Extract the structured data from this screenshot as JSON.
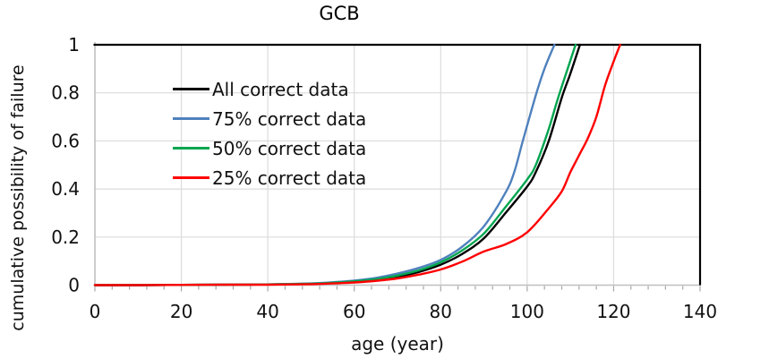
{
  "chart_data": {
    "type": "line",
    "title": "GCB",
    "xlabel": "age (year)",
    "ylabel": "cumulative possibility of failure",
    "xlim": [
      0,
      140
    ],
    "ylim": [
      0,
      1
    ],
    "x_ticks": [
      0,
      20,
      40,
      60,
      80,
      100,
      120,
      140
    ],
    "y_ticks": [
      0,
      0.2,
      0.4,
      0.6,
      0.8,
      1
    ],
    "x_minor_tick_unit": 4,
    "grid": true,
    "legend_position": "inside-top-left",
    "plot_border_color": "#000000",
    "axis_color": "#BFBFBF",
    "gridline_color": "#DCDCDC",
    "series": [
      {
        "name": "All correct data",
        "color": "#000000",
        "points": [
          [
            0,
            0
          ],
          [
            10,
            0
          ],
          [
            20,
            0.001
          ],
          [
            30,
            0.002
          ],
          [
            40,
            0.003
          ],
          [
            50,
            0.006
          ],
          [
            55,
            0.009
          ],
          [
            60,
            0.014
          ],
          [
            65,
            0.022
          ],
          [
            70,
            0.035
          ],
          [
            75,
            0.055
          ],
          [
            80,
            0.085
          ],
          [
            85,
            0.13
          ],
          [
            90,
            0.195
          ],
          [
            95,
            0.3
          ],
          [
            100,
            0.41
          ],
          [
            102,
            0.47
          ],
          [
            105,
            0.6
          ],
          [
            108,
            0.78
          ],
          [
            110,
            0.88
          ],
          [
            112.2,
            1.0
          ]
        ]
      },
      {
        "name": "75% correct data",
        "color": "#4F81BD",
        "points": [
          [
            0,
            0
          ],
          [
            10,
            0
          ],
          [
            20,
            0.001
          ],
          [
            30,
            0.002
          ],
          [
            40,
            0.003
          ],
          [
            50,
            0.007
          ],
          [
            55,
            0.012
          ],
          [
            60,
            0.019
          ],
          [
            65,
            0.03
          ],
          [
            70,
            0.048
          ],
          [
            75,
            0.072
          ],
          [
            80,
            0.105
          ],
          [
            85,
            0.16
          ],
          [
            90,
            0.245
          ],
          [
            95,
            0.385
          ],
          [
            97,
            0.47
          ],
          [
            99,
            0.6
          ],
          [
            102,
            0.79
          ],
          [
            104,
            0.9
          ],
          [
            106.3,
            1.0
          ]
        ]
      },
      {
        "name": "50% correct data",
        "color": "#00A54F",
        "points": [
          [
            0,
            0
          ],
          [
            10,
            0
          ],
          [
            20,
            0.001
          ],
          [
            30,
            0.002
          ],
          [
            40,
            0.003
          ],
          [
            50,
            0.006
          ],
          [
            55,
            0.01
          ],
          [
            60,
            0.016
          ],
          [
            65,
            0.025
          ],
          [
            70,
            0.04
          ],
          [
            75,
            0.062
          ],
          [
            80,
            0.095
          ],
          [
            85,
            0.145
          ],
          [
            90,
            0.215
          ],
          [
            95,
            0.325
          ],
          [
            100,
            0.44
          ],
          [
            102,
            0.5
          ],
          [
            105,
            0.65
          ],
          [
            107,
            0.77
          ],
          [
            109,
            0.88
          ],
          [
            111.2,
            1.0
          ]
        ]
      },
      {
        "name": "25% correct data",
        "color": "#FF0000",
        "points": [
          [
            0,
            0
          ],
          [
            10,
            0
          ],
          [
            20,
            0.001
          ],
          [
            30,
            0.002
          ],
          [
            40,
            0.002
          ],
          [
            50,
            0.004
          ],
          [
            55,
            0.007
          ],
          [
            60,
            0.011
          ],
          [
            65,
            0.018
          ],
          [
            70,
            0.028
          ],
          [
            75,
            0.044
          ],
          [
            80,
            0.065
          ],
          [
            85,
            0.098
          ],
          [
            90,
            0.14
          ],
          [
            95,
            0.17
          ],
          [
            100,
            0.22
          ],
          [
            105,
            0.32
          ],
          [
            108,
            0.39
          ],
          [
            110,
            0.47
          ],
          [
            112,
            0.54
          ],
          [
            114,
            0.61
          ],
          [
            116,
            0.7
          ],
          [
            118,
            0.83
          ],
          [
            120,
            0.93
          ],
          [
            121.5,
            1.0
          ]
        ]
      }
    ]
  }
}
